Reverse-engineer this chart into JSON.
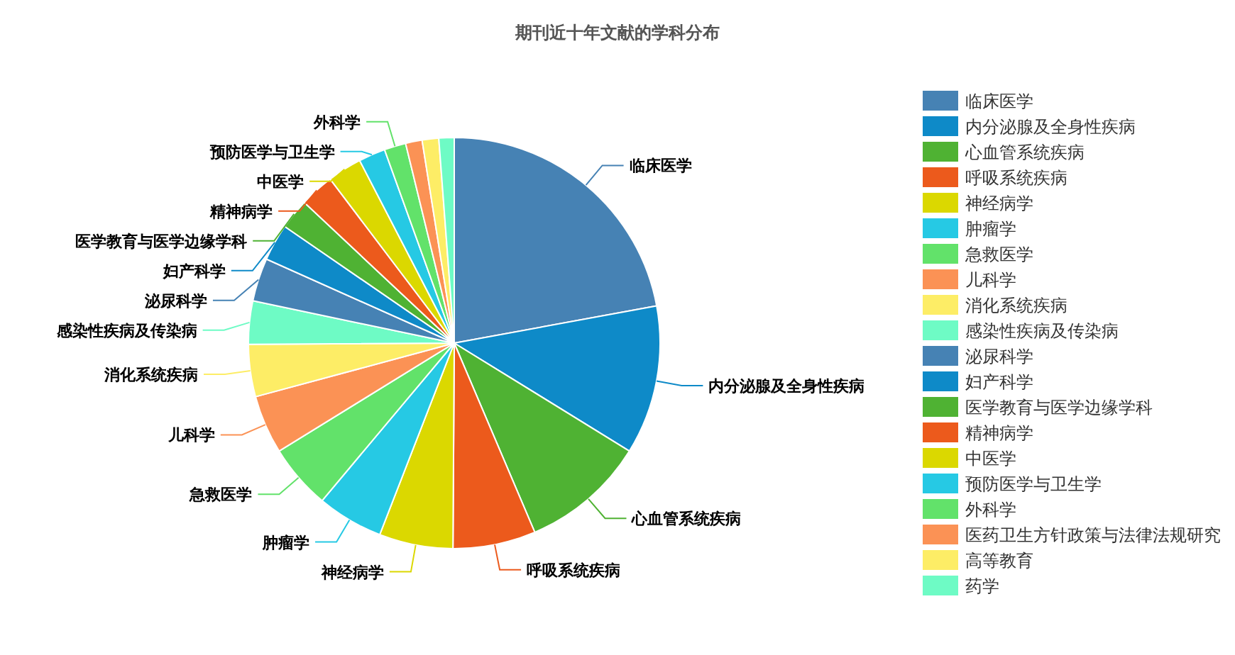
{
  "chart_data": {
    "type": "pie",
    "title": "期刊近十年文献的学科分布",
    "legend": "right",
    "categories": [
      "临床医学",
      "内分泌腺及全身性疾病",
      "心血管系统疾病",
      "呼吸系统疾病",
      "神经病学",
      "肿瘤学",
      "急救医学",
      "儿科学",
      "消化系统疾病",
      "感染性疾病及传染病",
      "泌尿科学",
      "妇产科学",
      "医学教育与医学边缘学科",
      "精神病学",
      "中医学",
      "预防医学与卫生学",
      "外科学",
      "医药卫生方针政策与法律法规研究",
      "高等教育",
      "药学"
    ],
    "values": [
      22.1,
      11.7,
      9.8,
      6.5,
      5.8,
      5.2,
      5.1,
      4.6,
      4.1,
      3.4,
      3.4,
      2.9,
      2.4,
      2.7,
      2.7,
      2.1,
      1.7,
      1.3,
      1.3,
      1.2
    ],
    "colors": [
      "#4682b4",
      "#0e8ac8",
      "#4fb233",
      "#ec5a1c",
      "#dbd800",
      "#26c9e4",
      "#62e26a",
      "#fb9255",
      "#fded66",
      "#6efbc5",
      "#4682b4",
      "#0e8ac8",
      "#4fb233",
      "#ec5a1c",
      "#dbd800",
      "#26c9e4",
      "#62e26a",
      "#fb9255",
      "#fded66",
      "#6efbc5"
    ]
  }
}
